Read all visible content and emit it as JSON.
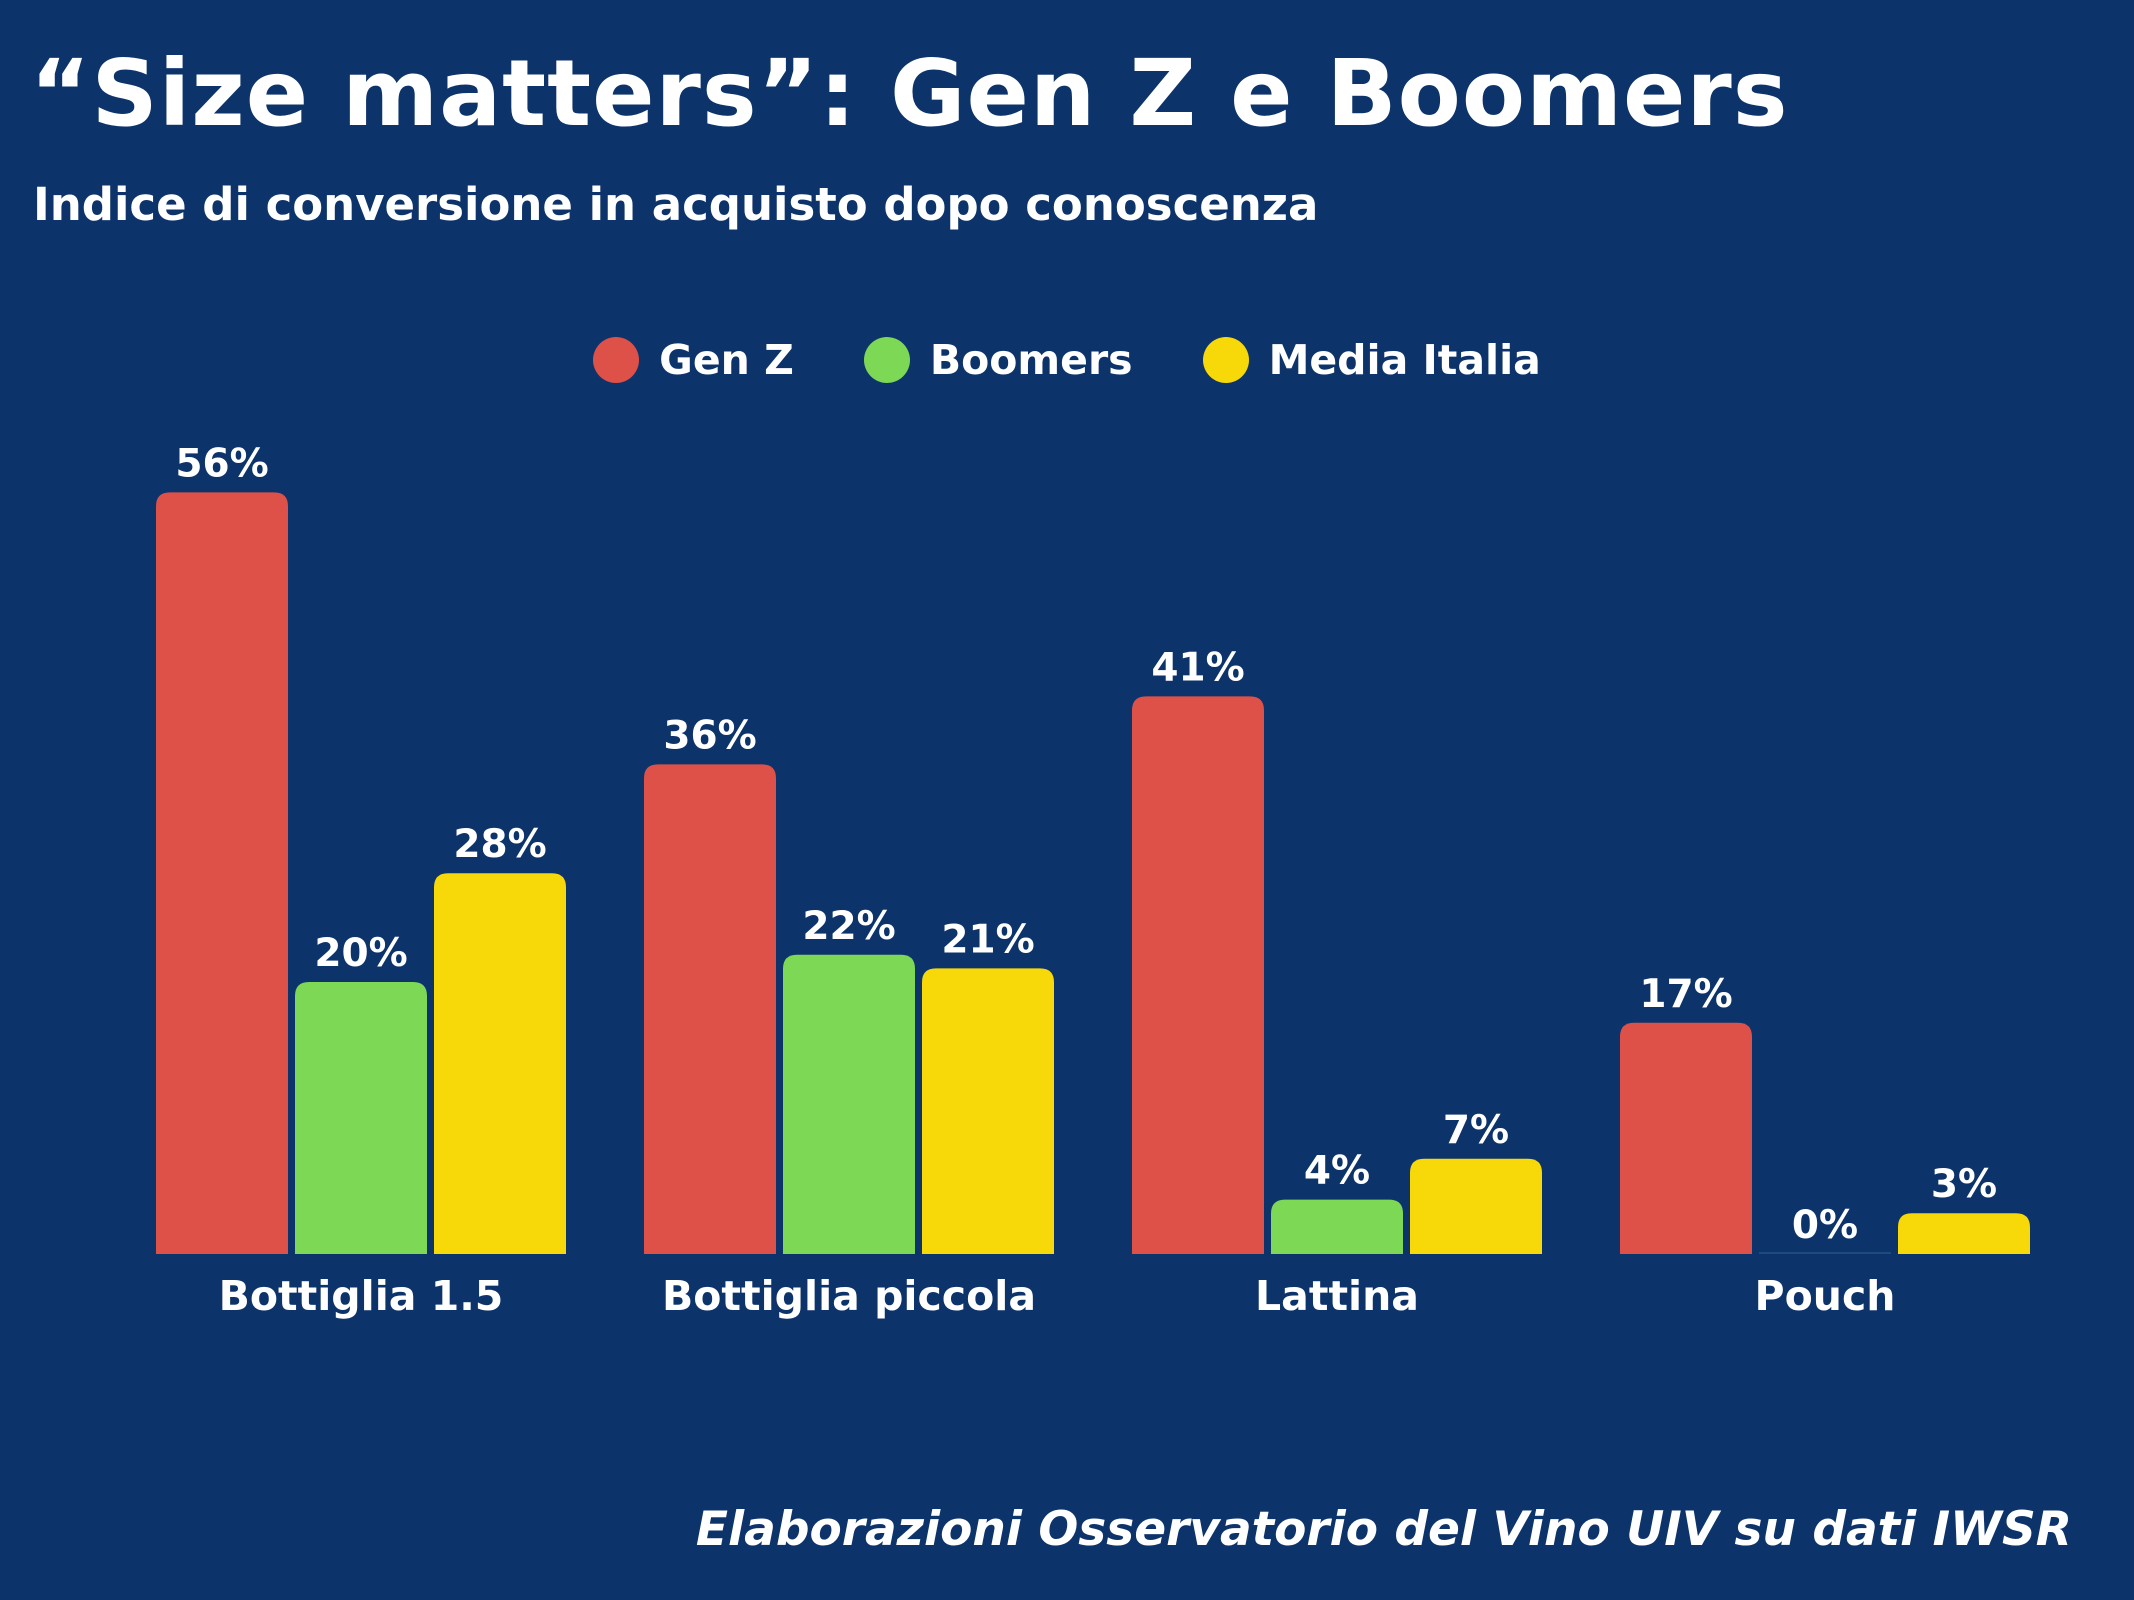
{
  "colors": {
    "background": "#0d336b",
    "gen_z": "#de5148",
    "boomers": "#7dd856",
    "media_italia": "#f7d808"
  },
  "header": {
    "title": "“Size matters”: Gen Z e Boomers",
    "subtitle": "Indice di conversione in acquisto dopo conoscenza"
  },
  "legend": [
    {
      "label": "Gen Z",
      "color": "#de5148"
    },
    {
      "label": "Boomers",
      "color": "#7dd856"
    },
    {
      "label": "Media Italia",
      "color": "#f7d808"
    }
  ],
  "chart_data": {
    "type": "bar",
    "title": "“Size matters”: Gen Z e Boomers",
    "subtitle": "Indice di conversione in acquisto dopo conoscenza",
    "categories": [
      "Bottiglia 1.5",
      "Bottiglia piccola",
      "Lattina",
      "Pouch"
    ],
    "series": [
      {
        "name": "Gen Z",
        "color": "#de5148",
        "values": [
          56,
          36,
          41,
          17
        ]
      },
      {
        "name": "Boomers",
        "color": "#7dd856",
        "values": [
          20,
          22,
          4,
          0
        ]
      },
      {
        "name": "Media Italia",
        "color": "#f7d808",
        "values": [
          28,
          21,
          7,
          3
        ]
      }
    ],
    "value_suffix": "%",
    "ylim": [
      0,
      60
    ],
    "grid": false,
    "legend_position": "top-center"
  },
  "footer": {
    "source": "Elaborazioni Osservatorio del Vino UIV su dati IWSR"
  }
}
